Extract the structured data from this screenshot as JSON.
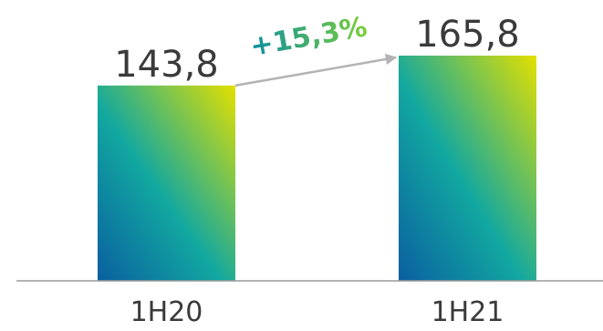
{
  "chart_data": {
    "type": "bar",
    "categories": [
      "1H20",
      "1H21"
    ],
    "values": [
      143.8,
      165.8
    ],
    "value_labels": [
      "143,8",
      "165,8"
    ],
    "growth_annotation": "+15,3%",
    "ylim": [
      0,
      165.8
    ],
    "grid": false,
    "legend": "none"
  },
  "colors": {
    "bar_top": "#e3e000",
    "bar_mid": "#12a8a0",
    "bar_bottom": "#0a5fa0",
    "growth_text_start": "#0d8fa0",
    "growth_text_end": "#7ccf3a",
    "arrow": "#b3b3b3",
    "axis": "#9a9a9a",
    "text": "#3a3a3a"
  }
}
